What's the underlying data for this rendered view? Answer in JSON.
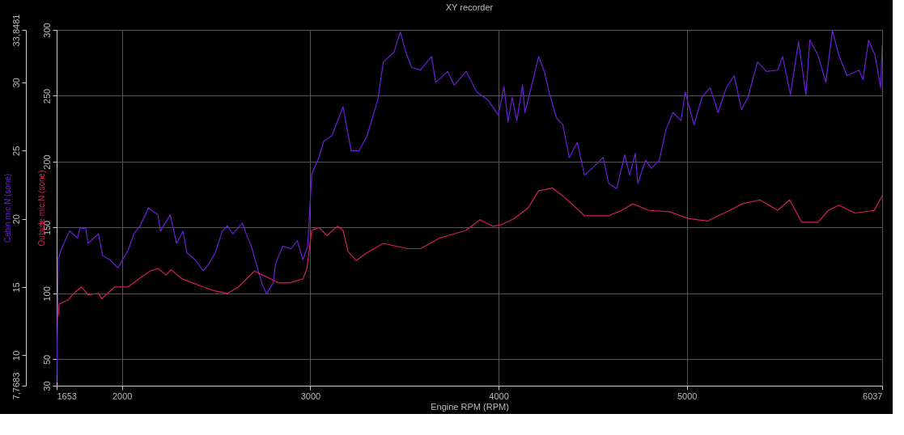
{
  "chart_data": {
    "type": "line",
    "title": "XY recorder",
    "xlabel": "Engine RPM (RPM)",
    "ylabel": "Cabin mic.N (sone)",
    "y2label": "Outside mic.N (sone)",
    "xlim": [
      1653,
      6037
    ],
    "xticks": [
      1653,
      2000,
      3000,
      4000,
      5000,
      6037
    ],
    "ylim": [
      7.7683,
      33.8481
    ],
    "yticks": [
      {
        "value": 7.7683,
        "label": "7,7683"
      },
      10,
      15,
      20,
      25,
      30,
      {
        "value": 33.8481,
        "label": "33,8481"
      }
    ],
    "y2lim": [
      30,
      300
    ],
    "y2ticks": [
      30,
      50,
      100,
      150,
      200,
      250,
      300
    ],
    "grid": true,
    "series": [
      {
        "name": null,
        "color": "#6a1fd8",
        "x": [
          1653,
          1662,
          1679,
          1721,
          1764,
          1777,
          1807,
          1820,
          1875,
          1897,
          1935,
          1978,
          2033,
          2063,
          2097,
          2140,
          2191,
          2204,
          2256,
          2290,
          2324,
          2345,
          2388,
          2431,
          2461,
          2495,
          2533,
          2559,
          2589,
          2640,
          2662,
          2687,
          2717,
          2747,
          2768,
          2803,
          2815,
          2854,
          2897,
          2931,
          2961,
          2986,
          3008,
          3046,
          3072,
          3115,
          3174,
          3217,
          3260,
          3302,
          3358,
          3388,
          3444,
          3478,
          3508,
          3538,
          3585,
          3644,
          3666,
          3730,
          3764,
          3828,
          3884,
          3944,
          3999,
          4029,
          4050,
          4072,
          4097,
          4127,
          4140,
          4183,
          4213,
          4243,
          4268,
          4307,
          4341,
          4375,
          4418,
          4456,
          4512,
          4555,
          4585,
          4627,
          4670,
          4696,
          4726,
          4739,
          4781,
          4811,
          4854,
          4888,
          4926,
          4969,
          4991,
          5038,
          5080,
          5123,
          5166,
          5209,
          5251,
          5290,
          5324,
          5375,
          5422,
          5482,
          5508,
          5550,
          5593,
          5632,
          5653,
          5696,
          5738,
          5773,
          5807,
          5850,
          5914,
          5935,
          5965,
          5999,
          6029,
          6037
        ],
        "values": [
          8.0,
          17.1,
          17.8,
          19.1,
          18.6,
          19.3,
          19.3,
          18.2,
          18.9,
          17.3,
          17.0,
          16.4,
          17.7,
          18.9,
          19.5,
          20.8,
          20.3,
          19.1,
          20.3,
          18.2,
          19.1,
          17.5,
          17.0,
          16.2,
          16.7,
          17.5,
          19.1,
          19.5,
          18.9,
          19.7,
          18.8,
          18.0,
          16.5,
          15.1,
          14.5,
          15.3,
          16.7,
          18.0,
          17.8,
          18.4,
          17.0,
          18.0,
          23.3,
          24.5,
          25.7,
          26.1,
          28.2,
          25.0,
          25.0,
          26.1,
          28.7,
          31.5,
          32.2,
          33.7,
          32.2,
          31.1,
          30.9,
          31.9,
          30.0,
          30.8,
          29.8,
          30.8,
          29.3,
          28.7,
          27.6,
          29.7,
          27.1,
          28.9,
          27.2,
          29.8,
          27.8,
          30.2,
          31.9,
          30.8,
          29.3,
          27.4,
          26.9,
          24.5,
          25.6,
          23.2,
          23.9,
          24.5,
          22.6,
          22.2,
          24.7,
          23.2,
          24.8,
          22.6,
          24.3,
          23.7,
          24.3,
          26.5,
          27.8,
          27.2,
          29.3,
          26.9,
          28.9,
          29.6,
          27.8,
          29.6,
          30.5,
          28.0,
          28.9,
          31.5,
          30.8,
          30.9,
          31.9,
          29.1,
          33.0,
          29.1,
          33.1,
          32.0,
          30.0,
          33.8,
          32.0,
          30.5,
          30.9,
          30.2,
          33.1,
          32.0,
          29.6,
          32.7
        ]
      },
      {
        "name": null,
        "color": "#d81b60",
        "axis": "y2",
        "x": [
          1662,
          1666,
          1713,
          1743,
          1785,
          1820,
          1875,
          1892,
          1961,
          2033,
          2089,
          2149,
          2191,
          2234,
          2260,
          2320,
          2375,
          2431,
          2491,
          2559,
          2619,
          2704,
          2747,
          2790,
          2832,
          2888,
          2961,
          2982,
          3008,
          3046,
          3089,
          3145,
          3174,
          3200,
          3243,
          3302,
          3388,
          3516,
          3585,
          3687,
          3828,
          3901,
          3969,
          4012,
          4085,
          4157,
          4213,
          4285,
          4341,
          4396,
          4456,
          4512,
          4585,
          4653,
          4713,
          4798,
          4909,
          5003,
          5110,
          5226,
          5294,
          5388,
          5482,
          5546,
          5610,
          5696,
          5751,
          5807,
          5892,
          5995,
          6037
        ],
        "values": [
          83,
          92,
          95,
          100,
          105,
          99,
          100,
          96,
          105,
          105,
          111,
          117,
          119,
          114,
          118,
          111,
          108,
          105,
          102,
          100,
          105,
          117,
          114,
          111,
          108,
          108,
          111,
          119,
          148,
          150,
          144,
          151,
          148,
          132,
          125,
          131,
          138,
          134,
          134,
          142,
          148,
          156,
          151,
          152,
          157,
          165,
          178,
          180,
          174,
          167,
          159,
          159,
          159,
          163,
          168,
          163,
          162,
          157,
          155,
          163,
          168,
          171,
          163,
          171,
          154,
          154,
          163,
          167,
          161,
          163,
          174
        ]
      }
    ]
  }
}
